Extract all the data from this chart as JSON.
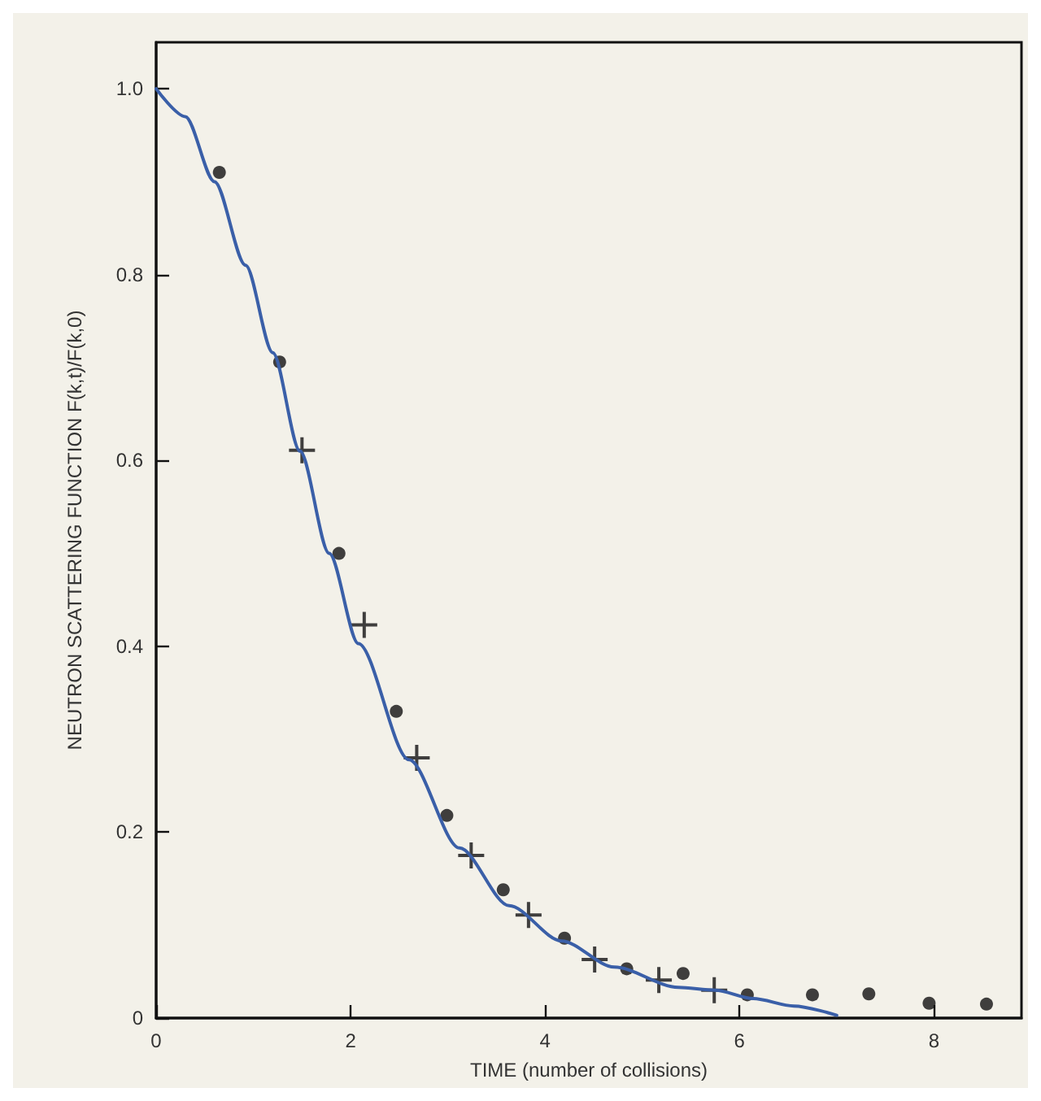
{
  "chart_data": {
    "type": "scatter",
    "xlabel": "TIME (number of collisions)",
    "ylabel": "NEUTRON SCATTERING FUNCTION F(k,t)/F(k,0)",
    "xlim": [
      0,
      8.9
    ],
    "ylim": [
      0,
      1.05
    ],
    "xticks": [
      0,
      2,
      4,
      6,
      8
    ],
    "yticks": [
      0,
      0.2,
      0.4,
      0.6,
      0.8,
      {
        "value": 1,
        "label": "1.0"
      }
    ],
    "grid": false,
    "series": [
      {
        "type": "line",
        "color": "#3a5fa8",
        "marker": "none",
        "line_style": "solid",
        "x": [
          0,
          0.3,
          0.6,
          0.92,
          1.2,
          1.48,
          1.78,
          2.08,
          2.6,
          3.12,
          3.63,
          4.17,
          4.71,
          5.37,
          5.75,
          6.14,
          6.56,
          7.0
        ],
        "values": [
          1.0,
          0.97,
          0.9,
          0.81,
          0.716,
          0.61,
          0.5,
          0.403,
          0.278,
          0.183,
          0.121,
          0.083,
          0.055,
          0.033,
          0.03,
          0.021,
          0.013,
          0.003
        ]
      },
      {
        "color": "#111111",
        "marker": "circle",
        "x": [
          0.65,
          1.27,
          1.88,
          2.47,
          2.99,
          3.57,
          4.2,
          4.84,
          5.42,
          6.08,
          6.75,
          7.33,
          7.95,
          8.54
        ],
        "values": [
          0.91,
          0.706,
          0.5,
          0.33,
          0.218,
          0.138,
          0.086,
          0.053,
          0.048,
          0.025,
          0.025,
          0.026,
          0.016,
          0.015
        ]
      },
      {
        "color": "#111111",
        "marker": "cross",
        "x": [
          1.5,
          2.14,
          2.68,
          3.24,
          3.83,
          4.51,
          5.17,
          5.74
        ],
        "values": [
          0.611,
          0.423,
          0.28,
          0.175,
          0.111,
          0.063,
          0.041,
          0.03
        ]
      }
    ]
  }
}
